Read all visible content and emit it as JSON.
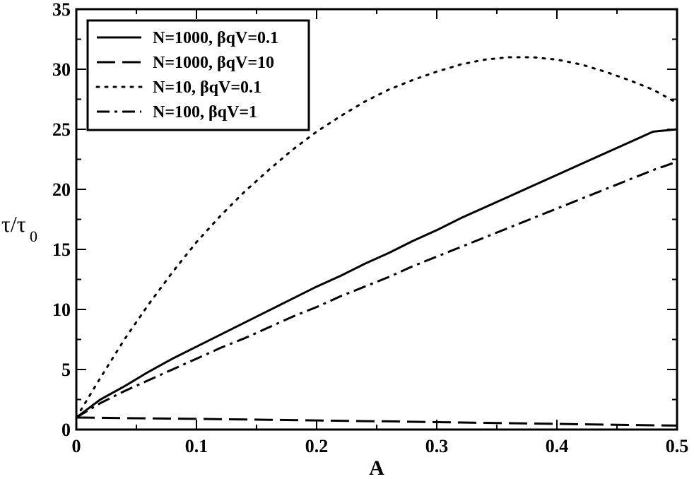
{
  "chart_data": {
    "type": "line",
    "title": "",
    "xlabel": "A",
    "ylabel": "τ/τ",
    "ylabel_sub": "0",
    "xlim": [
      0,
      0.5
    ],
    "ylim": [
      0,
      35
    ],
    "xticks": [
      "0",
      "0.1",
      "0.2",
      "0.3",
      "0.4",
      "0.5"
    ],
    "yticks": [
      "0",
      "5",
      "10",
      "15",
      "20",
      "25",
      "30",
      "35"
    ],
    "legend_position": "top-left",
    "x": [
      0,
      0.02,
      0.04,
      0.06,
      0.08,
      0.1,
      0.12,
      0.14,
      0.16,
      0.18,
      0.2,
      0.22,
      0.24,
      0.26,
      0.28,
      0.3,
      0.32,
      0.34,
      0.36,
      0.38,
      0.4,
      0.42,
      0.44,
      0.46,
      0.48,
      0.5
    ],
    "series": [
      {
        "name": "N=1000, βqV=0.1",
        "style": "solid",
        "values": [
          1.0,
          2.5,
          3.6,
          4.8,
          5.9,
          6.9,
          7.9,
          8.9,
          9.9,
          10.9,
          11.9,
          12.8,
          13.8,
          14.7,
          15.7,
          16.6,
          17.6,
          18.5,
          19.4,
          20.3,
          21.2,
          22.1,
          23.0,
          23.9,
          24.8,
          25.0
        ]
      },
      {
        "name": "N=1000, βqV=10",
        "style": "dashed",
        "values": [
          1.0,
          0.98,
          0.95,
          0.93,
          0.91,
          0.89,
          0.86,
          0.84,
          0.81,
          0.79,
          0.76,
          0.73,
          0.7,
          0.68,
          0.65,
          0.62,
          0.59,
          0.56,
          0.53,
          0.5,
          0.47,
          0.44,
          0.41,
          0.38,
          0.35,
          0.33
        ]
      },
      {
        "name": "N=10, βqV=0.1",
        "style": "dotted",
        "values": [
          1.0,
          4.3,
          7.5,
          10.4,
          13.1,
          15.6,
          17.8,
          19.8,
          21.6,
          23.3,
          24.8,
          26.1,
          27.3,
          28.3,
          29.1,
          29.8,
          30.4,
          30.8,
          31.0,
          31.0,
          30.8,
          30.4,
          29.8,
          29.1,
          28.3,
          27.2
        ]
      },
      {
        "name": "N=100, βqV=1",
        "style": "dashdot",
        "values": [
          1.0,
          2.2,
          3.2,
          4.1,
          5.0,
          5.9,
          6.8,
          7.6,
          8.5,
          9.4,
          10.2,
          11.1,
          11.9,
          12.7,
          13.6,
          14.4,
          15.2,
          16.0,
          16.8,
          17.6,
          18.4,
          19.2,
          20.0,
          20.8,
          21.6,
          22.3
        ]
      }
    ]
  }
}
